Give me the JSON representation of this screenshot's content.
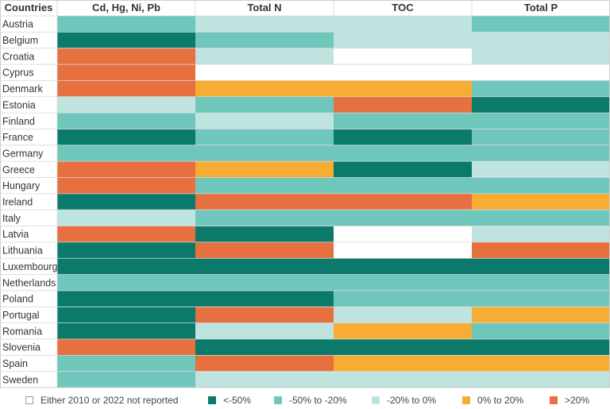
{
  "chart_data": {
    "type": "heatmap",
    "row_header": "Countries",
    "columns": [
      "Cd, Hg, Ni, Pb",
      "Total N",
      "TOC",
      "Total P"
    ],
    "legend": [
      {
        "key": "nr",
        "label": "Either 2010 or 2022 not reported",
        "color": "#ffffff"
      },
      {
        "key": "lt50",
        "label": "<-50%",
        "color": "#0b7a6a"
      },
      {
        "key": "m50m20",
        "label": "-50% to -20%",
        "color": "#6fc7bc"
      },
      {
        "key": "m20_0",
        "label": "-20% to 0%",
        "color": "#bfe4e0"
      },
      {
        "key": "p0_20",
        "label": "0% to 20%",
        "color": "#f7ac33"
      },
      {
        "key": "gt20",
        "label": ">20%",
        "color": "#e77040"
      }
    ],
    "rows": [
      {
        "country": "Austria",
        "values": [
          "m50m20",
          "m20_0",
          "m20_0",
          "m50m20"
        ]
      },
      {
        "country": "Belgium",
        "values": [
          "lt50",
          "m50m20",
          "m20_0",
          "m20_0"
        ]
      },
      {
        "country": "Croatia",
        "values": [
          "gt20",
          "m20_0",
          "nr",
          "m20_0"
        ]
      },
      {
        "country": "Cyprus",
        "values": [
          "gt20",
          "nr",
          "nr",
          "nr"
        ]
      },
      {
        "country": "Denmark",
        "values": [
          "gt20",
          "p0_20",
          "p0_20",
          "m50m20"
        ]
      },
      {
        "country": "Estonia",
        "values": [
          "m20_0",
          "m50m20",
          "gt20",
          "lt50"
        ]
      },
      {
        "country": "Finland",
        "values": [
          "m50m20",
          "m20_0",
          "m50m20",
          "m50m20"
        ]
      },
      {
        "country": "France",
        "values": [
          "lt50",
          "m50m20",
          "lt50",
          "m50m20"
        ]
      },
      {
        "country": "Germany",
        "values": [
          "m50m20",
          "m50m20",
          "m50m20",
          "m50m20"
        ]
      },
      {
        "country": "Greece",
        "values": [
          "gt20",
          "p0_20",
          "lt50",
          "m20_0"
        ]
      },
      {
        "country": "Hungary",
        "values": [
          "gt20",
          "m50m20",
          "m50m20",
          "m50m20"
        ]
      },
      {
        "country": "Ireland",
        "values": [
          "lt50",
          "gt20",
          "gt20",
          "p0_20"
        ]
      },
      {
        "country": "Italy",
        "values": [
          "m20_0",
          "m50m20",
          "m50m20",
          "m50m20"
        ]
      },
      {
        "country": "Latvia",
        "values": [
          "gt20",
          "lt50",
          "nr",
          "m20_0"
        ]
      },
      {
        "country": "Lithuania",
        "values": [
          "lt50",
          "gt20",
          "nr",
          "gt20"
        ]
      },
      {
        "country": "Luxembourg",
        "values": [
          "lt50",
          "lt50",
          "lt50",
          "lt50"
        ]
      },
      {
        "country": "Netherlands",
        "values": [
          "m50m20",
          "m50m20",
          "m50m20",
          "m50m20"
        ]
      },
      {
        "country": "Poland",
        "values": [
          "lt50",
          "lt50",
          "m50m20",
          "m50m20"
        ]
      },
      {
        "country": "Portugal",
        "values": [
          "lt50",
          "gt20",
          "m20_0",
          "p0_20"
        ]
      },
      {
        "country": "Romania",
        "values": [
          "lt50",
          "m20_0",
          "p0_20",
          "m50m20"
        ]
      },
      {
        "country": "Slovenia",
        "values": [
          "gt20",
          "lt50",
          "lt50",
          "lt50"
        ]
      },
      {
        "country": "Spain",
        "values": [
          "m50m20",
          "gt20",
          "p0_20",
          "p0_20"
        ]
      },
      {
        "country": "Sweden",
        "values": [
          "m50m20",
          "m20_0",
          "m20_0",
          "m20_0"
        ]
      }
    ]
  }
}
